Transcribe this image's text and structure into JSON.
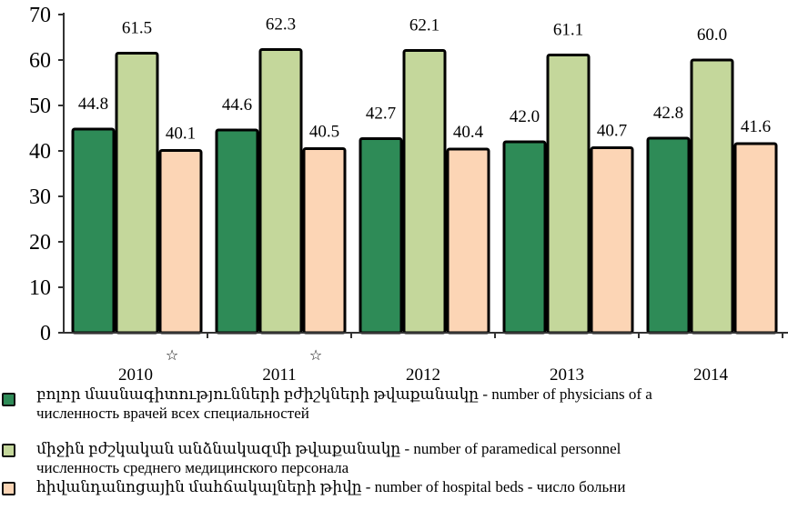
{
  "chart_data": {
    "type": "bar",
    "categories": [
      "2010",
      "2011",
      "2012",
      "2013",
      "2014"
    ],
    "category_marks": [
      "☆",
      "☆",
      "",
      "",
      ""
    ],
    "series": [
      {
        "name": "բոլոր մասնագիտությունների բժիշկների թվաքանակը - number of physicians of a",
        "name_ru": "численность врачей всех специальностей",
        "color": "#2e8b57",
        "values": [
          44.8,
          44.6,
          42.7,
          42.0,
          42.8
        ]
      },
      {
        "name": "միջին բժշկական անձնակազմի թվաքանակը - number of paramedical personnel",
        "name_ru": "численность среднего медицинского  персонала",
        "color": "#c4d79b",
        "values": [
          61.5,
          62.3,
          62.1,
          61.1,
          60.0
        ]
      },
      {
        "name": "հիվանդանոցային մահճակալների թիվը - number of hospital beds - число больни",
        "name_ru": "",
        "color": "#fcd5b5",
        "values": [
          40.1,
          40.5,
          40.4,
          40.7,
          41.6
        ]
      }
    ],
    "ylim": [
      0,
      70
    ],
    "yticks": [
      "0",
      "10",
      "20",
      "30",
      "40",
      "50",
      "60",
      "70"
    ],
    "title": "",
    "xlabel": "",
    "ylabel": "",
    "grid": false,
    "legend_position": "bottom"
  }
}
